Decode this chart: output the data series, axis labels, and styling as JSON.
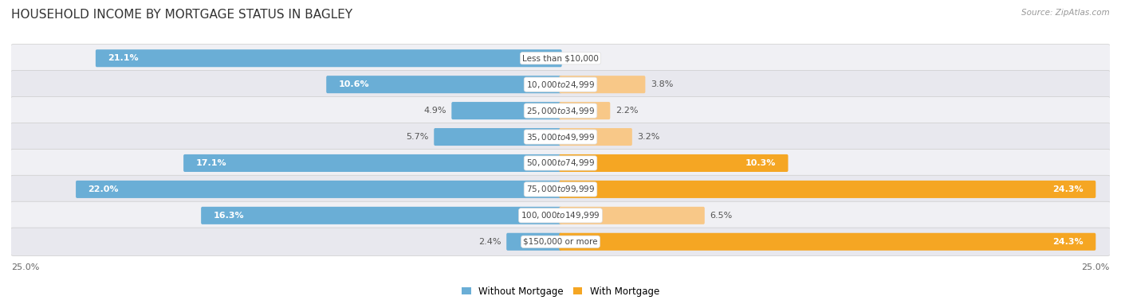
{
  "title": "HOUSEHOLD INCOME BY MORTGAGE STATUS IN BAGLEY",
  "source": "Source: ZipAtlas.com",
  "categories": [
    "Less than $10,000",
    "$10,000 to $24,999",
    "$25,000 to $34,999",
    "$35,000 to $49,999",
    "$50,000 to $74,999",
    "$75,000 to $99,999",
    "$100,000 to $149,999",
    "$150,000 or more"
  ],
  "without_mortgage": [
    21.1,
    10.6,
    4.9,
    5.7,
    17.1,
    22.0,
    16.3,
    2.4
  ],
  "with_mortgage": [
    0.0,
    3.8,
    2.2,
    3.2,
    10.3,
    24.3,
    6.5,
    24.3
  ],
  "color_without": "#6aaed6",
  "color_with": "#f5a623",
  "color_with_light": "#f8c888",
  "axis_max": 25.0,
  "legend_without": "Without Mortgage",
  "legend_with": "With Mortgage",
  "title_fontsize": 11,
  "label_fontsize": 8,
  "cat_fontsize": 7.5,
  "axis_label_fontsize": 8,
  "row_bg_odd": "#f0f0f4",
  "row_bg_even": "#e8e8ee",
  "fig_bg": "#ffffff"
}
